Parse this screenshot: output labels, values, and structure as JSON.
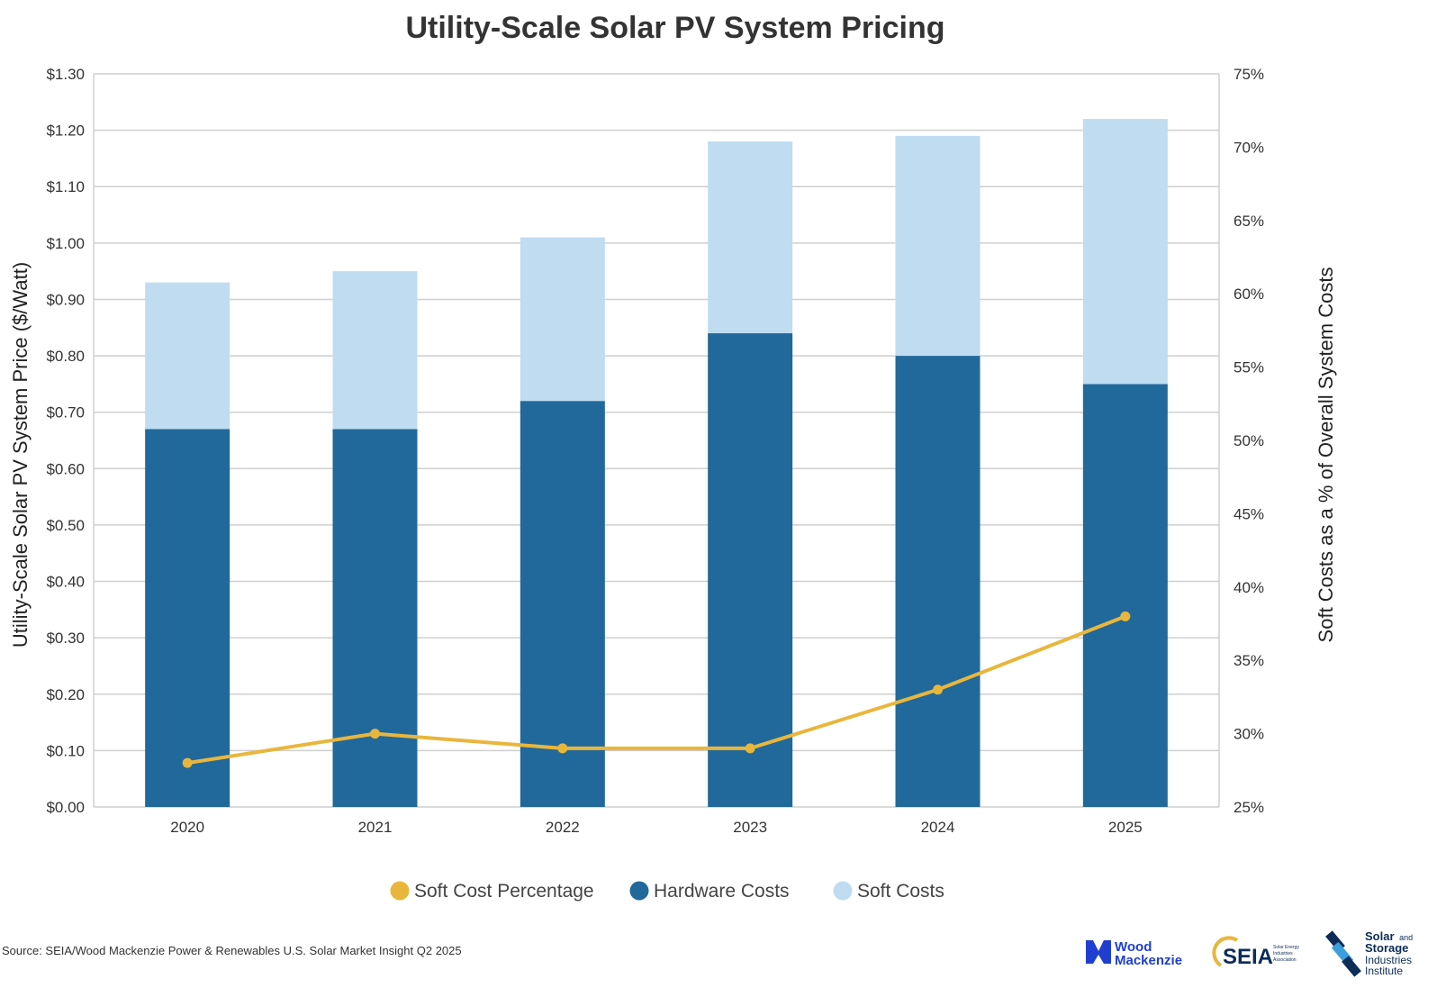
{
  "chart_data": {
    "type": "bar",
    "title": "Utility-Scale Solar PV System Pricing",
    "categories": [
      "2020",
      "2021",
      "2022",
      "2023",
      "2024",
      "2025"
    ],
    "series": [
      {
        "name": "Hardware Costs",
        "type": "bar",
        "stacked": true,
        "axis": "left",
        "color": "#21699a",
        "values": [
          0.67,
          0.67,
          0.72,
          0.84,
          0.8,
          0.75
        ]
      },
      {
        "name": "Soft Costs",
        "type": "bar",
        "stacked": true,
        "axis": "left",
        "color": "#bfdcf1",
        "values": [
          0.26,
          0.28,
          0.29,
          0.34,
          0.39,
          0.47
        ]
      },
      {
        "name": "Soft Cost Percentage",
        "type": "line",
        "axis": "right",
        "color": "#e9b63c",
        "values": [
          28.0,
          30.0,
          29.0,
          29.0,
          33.0,
          38.0
        ]
      }
    ],
    "ylabel": "Utility-Scale Solar PV System Price ($/Watt)",
    "ylabel_right": "Soft Costs as a % of Overall System Costs",
    "ylim": [
      0,
      1.3
    ],
    "ylim_right": [
      25,
      75
    ],
    "yticks": [
      "$0.00",
      "$0.10",
      "$0.20",
      "$0.30",
      "$0.40",
      "$0.50",
      "$0.60",
      "$0.70",
      "$0.80",
      "$0.90",
      "$1.00",
      "$1.10",
      "$1.20",
      "$1.30"
    ],
    "yticks_right": [
      "25%",
      "30%",
      "35%",
      "40%",
      "45%",
      "50%",
      "55%",
      "60%",
      "65%",
      "70%",
      "75%"
    ],
    "legend": [
      "Soft Cost Percentage",
      "Hardware Costs",
      "Soft Costs"
    ],
    "legend_position": "bottom",
    "grid": true
  },
  "footer": {
    "source": "Source: SEIA/Wood Mackenzie Power & Renewables U.S. Solar Market Insight Q2 2025",
    "logo1_line1": "Wood",
    "logo1_line2": "Mackenzie",
    "logo2_text": "SEIA",
    "logo2_small1": "Solar Energy",
    "logo2_small2": "Industries",
    "logo2_small3": "Association",
    "logo3_line1": "Solar",
    "logo3_small": "and",
    "logo3_line2": "Storage",
    "logo3_line3": "Industries",
    "logo3_line4": "Institute",
    "colors": {
      "woodmac": "#1f3fd1",
      "seia_sun": "#e9b63c",
      "navy": "#0d2c57",
      "sky": "#3a9fdc"
    }
  }
}
